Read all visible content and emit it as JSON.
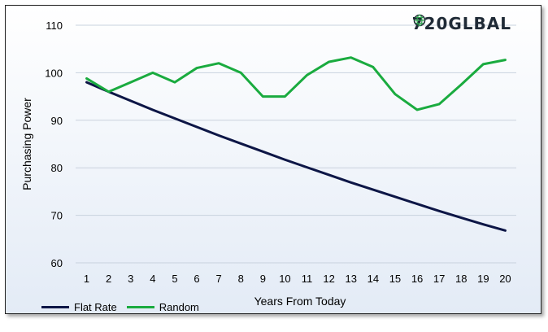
{
  "brand": {
    "prefix": "720GL",
    "suffix": "BAL"
  },
  "chart_data": {
    "type": "line",
    "title": "",
    "xlabel": "Years From Today",
    "ylabel": "Purchasing Power",
    "x": [
      1,
      2,
      3,
      4,
      5,
      6,
      7,
      8,
      9,
      10,
      11,
      12,
      13,
      14,
      15,
      16,
      17,
      18,
      19,
      20
    ],
    "xlim": [
      0.5,
      20.5
    ],
    "ylim": [
      60,
      110
    ],
    "yticks": [
      60,
      70,
      80,
      90,
      100,
      110
    ],
    "grid": true,
    "legend_position": "bottom-left",
    "series": [
      {
        "name": "Flat Rate",
        "color": "#0d1646",
        "values": [
          98.0,
          96.0,
          94.1,
          92.2,
          90.4,
          88.6,
          86.8,
          85.1,
          83.4,
          81.7,
          80.1,
          78.5,
          76.9,
          75.4,
          73.9,
          72.4,
          70.9,
          69.5,
          68.1,
          66.8
        ]
      },
      {
        "name": "Random",
        "color": "#1aab3f",
        "values": [
          98.8,
          96.0,
          98.0,
          100.0,
          98.0,
          101.0,
          102.0,
          100.0,
          95.0,
          95.0,
          99.5,
          102.3,
          103.2,
          101.2,
          95.5,
          92.2,
          93.4,
          97.5,
          101.8,
          102.7
        ]
      }
    ]
  }
}
